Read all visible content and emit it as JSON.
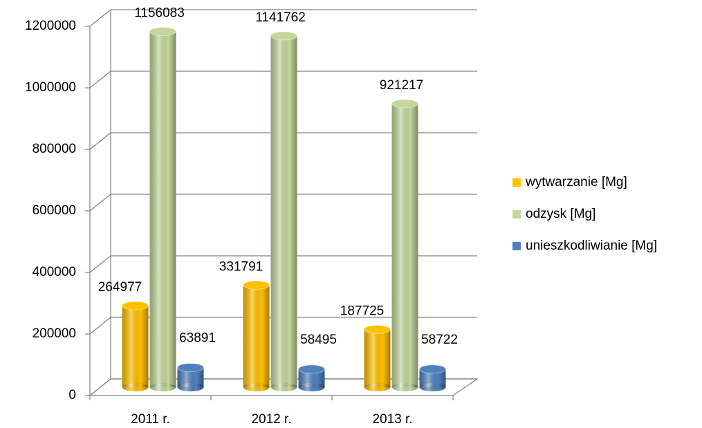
{
  "chart_data": {
    "type": "bar3d",
    "categories": [
      "2011 r.",
      "2012 r.",
      "2013 r."
    ],
    "series": [
      {
        "name": "wytwarzanie [Mg]",
        "color": "#ffc000",
        "values": [
          264977,
          331791,
          187725
        ]
      },
      {
        "name": "odzysk [Mg]",
        "color": "#c3d69b",
        "values": [
          1156083,
          1141762,
          921217
        ]
      },
      {
        "name": "unieszkodliwianie [Mg]",
        "color": "#4f81bd",
        "values": [
          63891,
          58495,
          58722
        ]
      }
    ],
    "ylim": [
      0,
      1200000
    ],
    "yticks": [
      0,
      200000,
      400000,
      600000,
      800000,
      1000000,
      1200000
    ],
    "grid": true,
    "legend": "right"
  }
}
